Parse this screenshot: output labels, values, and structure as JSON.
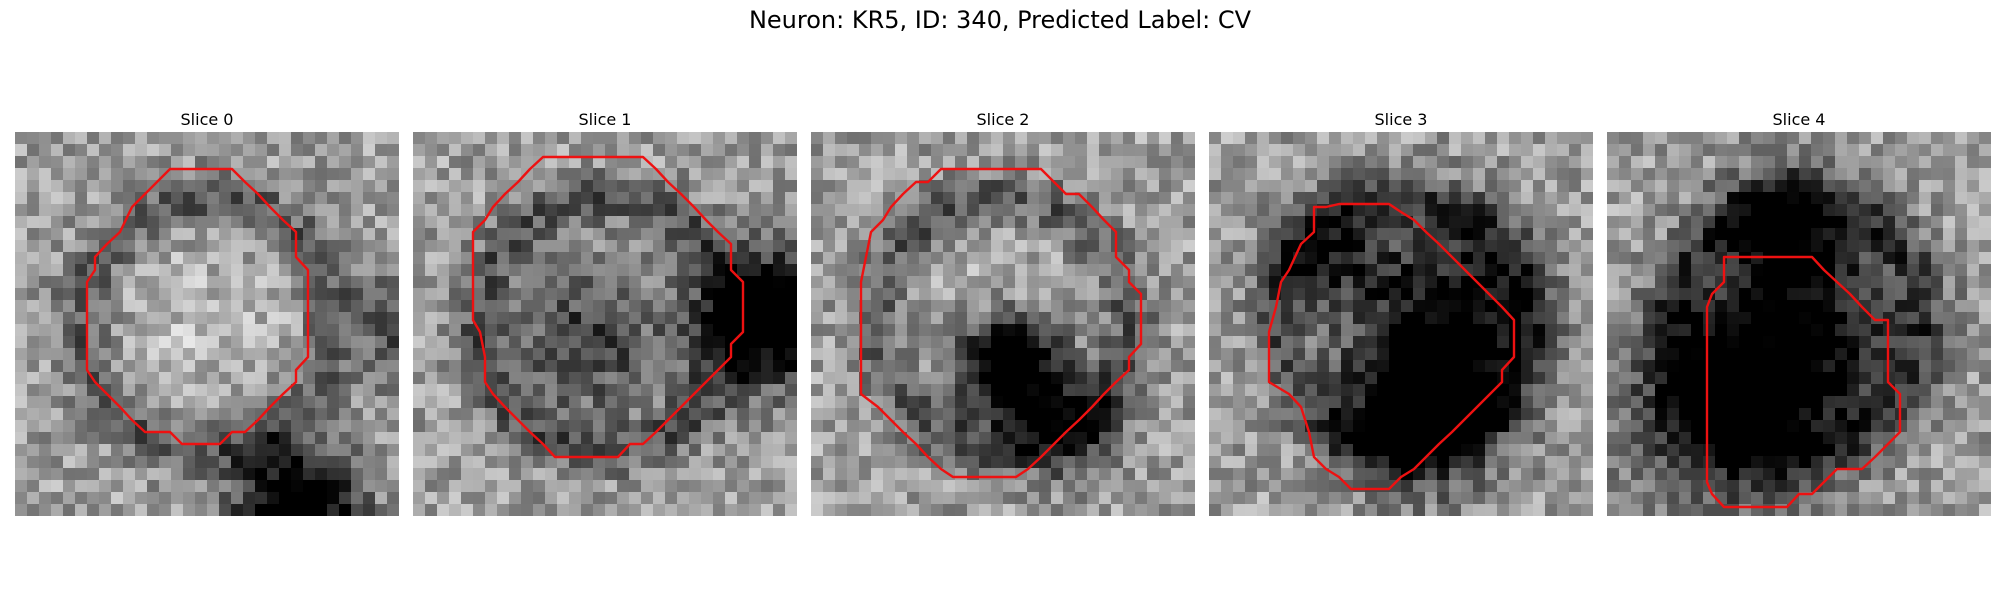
{
  "figure": {
    "title": "Neuron: KR5, ID: 340, Predicted Label: CV"
  },
  "panels": [
    {
      "title": "Slice 0",
      "seed": 11,
      "bright_center": true,
      "dark_spots": [
        [
          31,
          23,
          3.5,
          0.9
        ],
        [
          16,
          33,
          3.0,
          0.5
        ]
      ]
    },
    {
      "title": "Slice 1",
      "seed": 23,
      "bright_center": false,
      "dark_spots": [
        [
          15,
          28,
          4.0,
          0.6
        ],
        [
          15,
          33,
          3.0,
          0.8
        ],
        [
          17,
          14,
          4.0,
          0.4
        ]
      ]
    },
    {
      "title": "Slice 2",
      "seed": 37,
      "bright_center": true,
      "dark_spots": [
        [
          19,
          16,
          3.0,
          1.0
        ],
        [
          24,
          21,
          3.0,
          0.45
        ]
      ]
    },
    {
      "title": "Slice 3",
      "seed": 41,
      "bright_center": true,
      "dark_spots": [
        [
          22,
          17,
          4.5,
          0.9
        ],
        [
          14,
          20,
          5.0,
          0.6
        ],
        [
          10,
          10,
          3.5,
          0.45
        ]
      ]
    },
    {
      "title": "Slice 4",
      "seed": 53,
      "bright_center": true,
      "dark_spots": [
        [
          22,
          10,
          5.5,
          0.8
        ],
        [
          16,
          17,
          5.5,
          0.55
        ],
        [
          8,
          14,
          3.5,
          0.6
        ]
      ]
    }
  ],
  "colors": {
    "contour": "#ee1111"
  }
}
